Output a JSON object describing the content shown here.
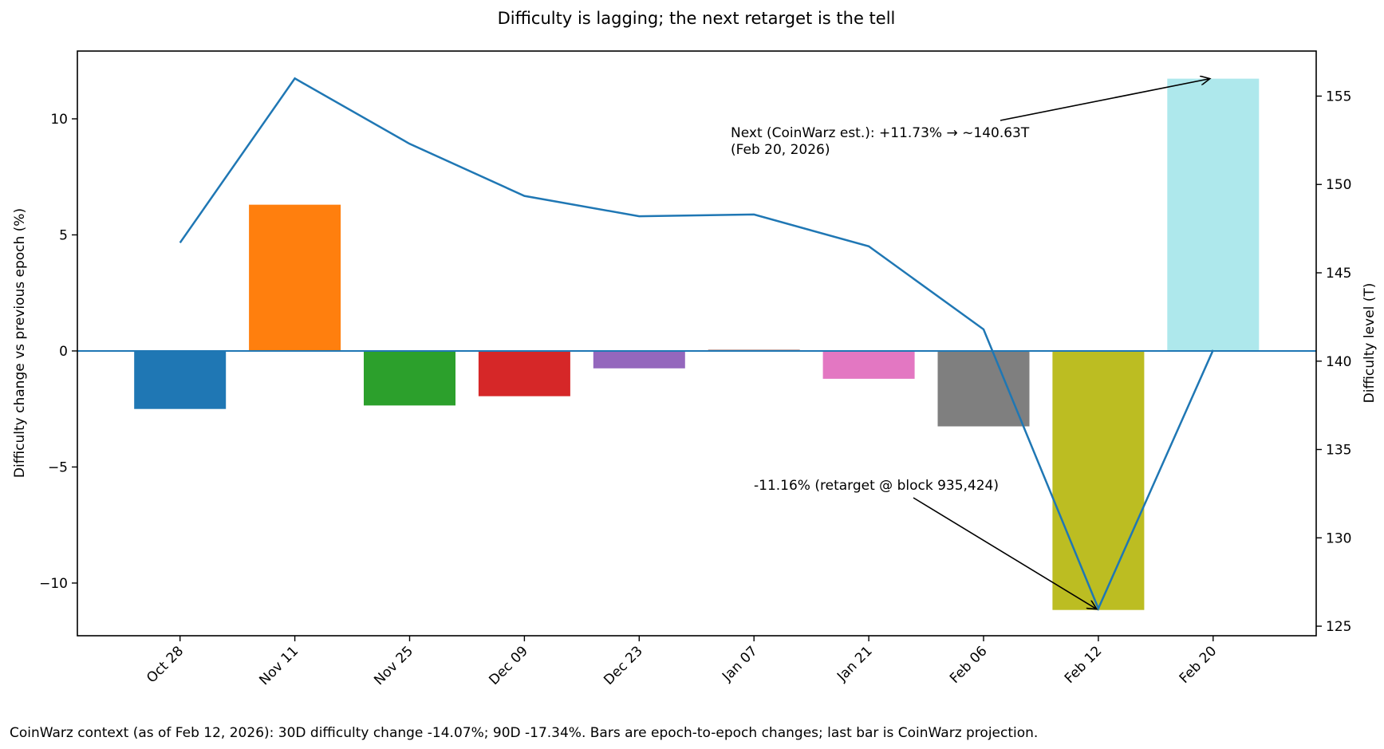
{
  "chart_data": {
    "type": "bar",
    "title": "Difficulty is lagging; the next retarget is the tell",
    "categories": [
      "Oct 28",
      "Nov 11",
      "Nov 25",
      "Dec 09",
      "Dec 23",
      "Jan 07",
      "Jan 21",
      "Feb 06",
      "Feb 12",
      "Feb 20"
    ],
    "bar_values": [
      -2.5,
      6.3,
      -2.35,
      -1.95,
      -0.75,
      0.05,
      -1.2,
      -3.25,
      -11.16,
      11.73
    ],
    "bar_colors": [
      "#1f77b4",
      "#ff7f0e",
      "#2ca02c",
      "#d62728",
      "#9467bd",
      "#8c564b",
      "#e377c2",
      "#7f7f7f",
      "#bcbd22",
      "#aee8ec"
    ],
    "line_values": [
      146.7,
      156.0,
      152.3,
      149.35,
      148.2,
      148.3,
      146.5,
      141.8,
      126.0,
      140.63
    ],
    "line_color": "#1f77b4",
    "ylabel": "Difficulty change vs previous epoch (%)",
    "ylabel_right": "Difficulty level (T)",
    "ylim": [
      -12.27,
      12.92
    ],
    "ylim_right": [
      124.46,
      157.55
    ],
    "yticks": [
      -10,
      -5,
      0,
      5,
      10
    ],
    "yticks_right": [
      125,
      130,
      135,
      140,
      145,
      150,
      155
    ],
    "zero_line": true,
    "grid": false,
    "annotations": [
      {
        "text": [
          "Next (CoinWarz est.): +11.73% → ~140.63T",
          "(Feb 20, 2026)"
        ],
        "target_category": "Feb 20",
        "target_value": 11.73
      },
      {
        "text": [
          "-11.16% (retarget @ block 935,424)"
        ],
        "target_category": "Feb 12",
        "target_value": -11.16
      }
    ],
    "footnote": "CoinWarz context (as of Feb 12, 2026): 30D difficulty change -14.07%; 90D -17.34%. Bars are epoch-to-epoch changes; last bar is CoinWarz projection."
  }
}
